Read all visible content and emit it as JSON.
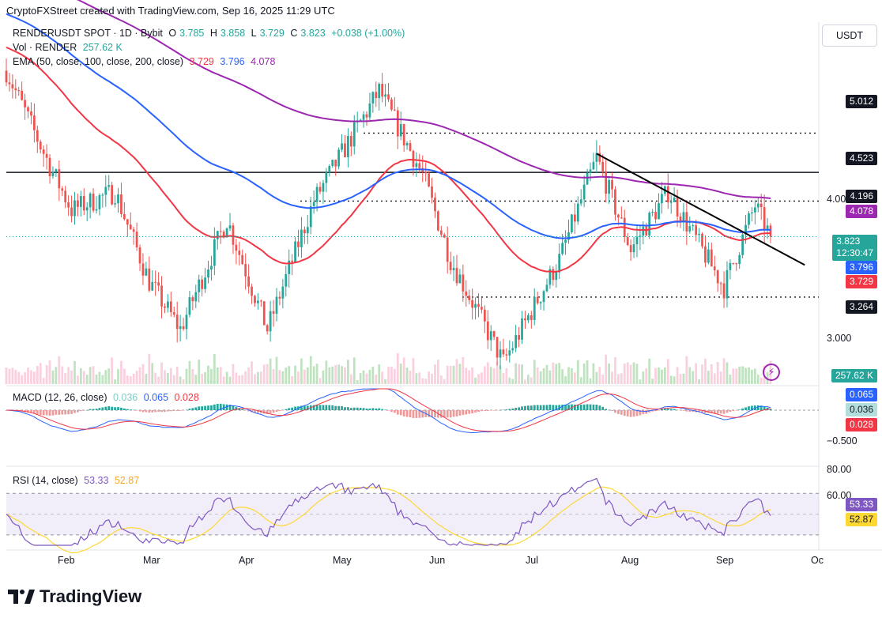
{
  "attribution": "CryptoFXStreet created with TradingView.com, Sep 16, 2025 11:29 UTC",
  "currency_button": "USDT",
  "legend": {
    "symbol": "RENDERUSDT SPOT · 1D · Bybit",
    "o_label": "O",
    "o_value": "3.785",
    "h_label": "H",
    "h_value": "3.858",
    "l_label": "L",
    "l_value": "3.729",
    "c_label": "C",
    "c_value": "3.823",
    "change": "+0.038 (+1.00%)",
    "vol_label": "Vol · RENDER",
    "vol_value": "257.62 K",
    "ema_label": "EMA (50, close, 100, close, 200, close)",
    "ema50": "3.729",
    "ema100": "3.796",
    "ema200": "4.078"
  },
  "macd_legend": {
    "label": "MACD (12, 26, close)",
    "hist": "0.036",
    "macd": "0.065",
    "signal": "0.028"
  },
  "rsi_legend": {
    "label": "RSI (14, close)",
    "rsi": "53.33",
    "ma": "52.87"
  },
  "price_pills": {
    "p5012": "5.012",
    "p4523": "4.523",
    "p4196": "4.196",
    "p4078": "4.078",
    "p3823": "3.823",
    "countdown": "12:30:47",
    "p3796": "3.796",
    "p3729": "3.729",
    "p3264": "3.264",
    "vol": "257.62 K"
  },
  "price_axis": [
    "4.000",
    "3.000"
  ],
  "macd_pills": {
    "macd": "0.065",
    "hist": "0.036",
    "signal": "0.028"
  },
  "macd_axis": [
    "−0.500"
  ],
  "rsi_axis": [
    "80.00",
    "60.00"
  ],
  "rsi_pills": {
    "rsi": "53.33",
    "ma": "52.87"
  },
  "time_axis": [
    "Feb",
    "Mar",
    "Apr",
    "May",
    "Jun",
    "Jul",
    "Aug",
    "Sep",
    "Oc"
  ],
  "branding": "TradingView",
  "colors": {
    "up": "#26a69a",
    "down": "#ef5350",
    "ema50": "#f23645",
    "ema100": "#2962ff",
    "ema200": "#9c27b0",
    "macd": "#2962ff",
    "signal": "#f23645",
    "rsi": "#7e57c2",
    "rsi_ma": "#fdd835"
  },
  "chart_data": {
    "type": "candlestick",
    "symbol": "RENDERUSDT",
    "timeframe": "1D",
    "x_range": [
      "2025-01-13",
      "2025-09-16"
    ],
    "price_scale": "log",
    "y_range": [
      2.6,
      6.7
    ],
    "horizontal_levels": [
      5.012,
      4.523,
      4.196,
      3.264
    ],
    "trendline": {
      "from": [
        "2025-07-22",
        4.75
      ],
      "to": [
        "2025-09-27",
        3.55
      ]
    },
    "last_close": 3.823,
    "ema": {
      "50": 3.729,
      "100": 3.796,
      "200": 4.078
    },
    "price_keypoints": [
      [
        "2025-01-13",
        5.9
      ],
      [
        "2025-01-27",
        4.6
      ],
      [
        "2025-02-03",
        4.1
      ],
      [
        "2025-02-17",
        4.3
      ],
      [
        "2025-02-28",
        3.4
      ],
      [
        "2025-03-10",
        3.0
      ],
      [
        "2025-03-25",
        4.0
      ],
      [
        "2025-04-07",
        3.0
      ],
      [
        "2025-04-22",
        4.2
      ],
      [
        "2025-05-13",
        5.6
      ],
      [
        "2025-05-27",
        4.5
      ],
      [
        "2025-06-05",
        3.6
      ],
      [
        "2025-06-22",
        2.75
      ],
      [
        "2025-07-10",
        3.6
      ],
      [
        "2025-07-22",
        4.7
      ],
      [
        "2025-08-02",
        3.7
      ],
      [
        "2025-08-14",
        4.3
      ],
      [
        "2025-09-01",
        3.35
      ],
      [
        "2025-09-11",
        4.15
      ],
      [
        "2025-09-16",
        3.823
      ]
    ],
    "volume_last": "257.62K",
    "macd": {
      "macd": 0.065,
      "signal": 0.028,
      "hist": 0.036
    },
    "rsi": {
      "value": 53.33,
      "ma": 52.87,
      "bands": [
        70,
        30
      ]
    }
  }
}
